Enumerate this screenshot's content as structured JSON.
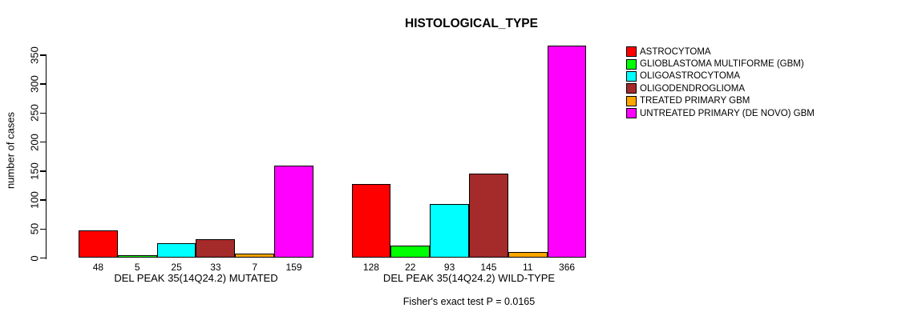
{
  "chart_data": {
    "type": "bar",
    "title": "HISTOLOGICAL_TYPE",
    "xlabel": "",
    "ylabel": "number of cases",
    "ylim": [
      0,
      350
    ],
    "y_ticks": [
      0,
      50,
      100,
      150,
      200,
      250,
      300,
      350
    ],
    "grid": false,
    "legend_position": "right",
    "categories": [
      "DEL PEAK 35(14Q24.2) MUTATED",
      "DEL PEAK 35(14Q24.2) WILD-TYPE"
    ],
    "series": [
      {
        "name": "ASTROCYTOMA",
        "color": "#FF0000",
        "values": [
          48,
          128
        ]
      },
      {
        "name": "GLIOBLASTOMA MULTIFORME (GBM)",
        "color": "#00FF00",
        "values": [
          5,
          22
        ]
      },
      {
        "name": "OLIGOASTROCYTOMA",
        "color": "#00FFFF",
        "values": [
          25,
          93
        ]
      },
      {
        "name": "OLIGODENDROGLIOMA",
        "color": "#A52A2A",
        "values": [
          33,
          145
        ]
      },
      {
        "name": "TREATED PRIMARY GBM",
        "color": "#FFA500",
        "values": [
          7,
          11
        ]
      },
      {
        "name": "UNTREATED PRIMARY (DE NOVO) GBM",
        "color": "#FF00FF",
        "values": [
          159,
          366
        ]
      }
    ],
    "bar_value_labels_shown": true,
    "footnote": "Fisher's exact test P = 0.0165",
    "text_color": "#000000",
    "background_color": "#FFFFFF"
  }
}
